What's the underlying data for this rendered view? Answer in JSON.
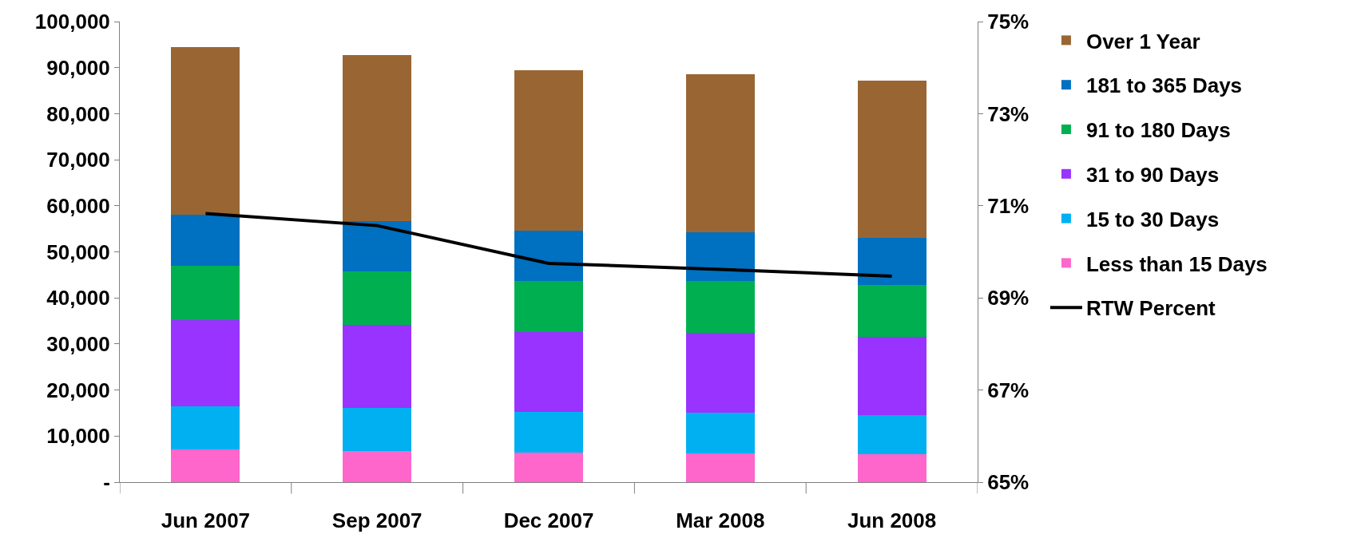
{
  "chart_data": {
    "type": "bar",
    "stacked": true,
    "categories": [
      "Jun 2007",
      "Sep 2007",
      "Dec 2007",
      "Mar 2008",
      "Jun 2008"
    ],
    "series": [
      {
        "name": "Less than 15 Days",
        "color": "#ff66cc",
        "values": [
          7100,
          6800,
          6400,
          6200,
          6000
        ]
      },
      {
        "name": "15 to 30 Days",
        "color": "#00b0f0",
        "values": [
          9400,
          9300,
          8800,
          8800,
          8500
        ]
      },
      {
        "name": "31 to 90 Days",
        "color": "#9933ff",
        "values": [
          18600,
          18000,
          17300,
          17400,
          17000
        ]
      },
      {
        "name": "91 to 180 Days",
        "color": "#00b050",
        "values": [
          11800,
          11700,
          11200,
          11300,
          11300
        ]
      },
      {
        "name": "181 to 365 Days",
        "color": "#0070c0",
        "values": [
          11100,
          10900,
          10900,
          10500,
          10300
        ]
      },
      {
        "name": "Over 1 Year",
        "color": "#996633",
        "values": [
          36400,
          36000,
          34900,
          34400,
          34100
        ]
      },
      {
        "name": "RTW Percent",
        "type": "line",
        "axis": "y2",
        "color": "#000000",
        "marker": "none",
        "line_style": "solid",
        "values": [
          70.83,
          70.57,
          69.75,
          69.62,
          69.47
        ]
      }
    ],
    "ylim": [
      0,
      100000
    ],
    "yticks": [
      {
        "value": 0,
        "label": "-"
      },
      {
        "value": 10000,
        "label": "10,000"
      },
      {
        "value": 20000,
        "label": "20,000"
      },
      {
        "value": 30000,
        "label": "30,000"
      },
      {
        "value": 40000,
        "label": "40,000"
      },
      {
        "value": 50000,
        "label": "50,000"
      },
      {
        "value": 60000,
        "label": "60,000"
      },
      {
        "value": 70000,
        "label": "70,000"
      },
      {
        "value": 80000,
        "label": "80,000"
      },
      {
        "value": 90000,
        "label": "90,000"
      },
      {
        "value": 100000,
        "label": "100,000"
      }
    ],
    "y2lim": [
      65,
      75
    ],
    "y2ticks": [
      {
        "value": 65,
        "label": "65%"
      },
      {
        "value": 67,
        "label": "67%"
      },
      {
        "value": 69,
        "label": "69%"
      },
      {
        "value": 71,
        "label": "71%"
      },
      {
        "value": 73,
        "label": "73%"
      },
      {
        "value": 75,
        "label": "75%"
      }
    ],
    "legend": "right"
  }
}
